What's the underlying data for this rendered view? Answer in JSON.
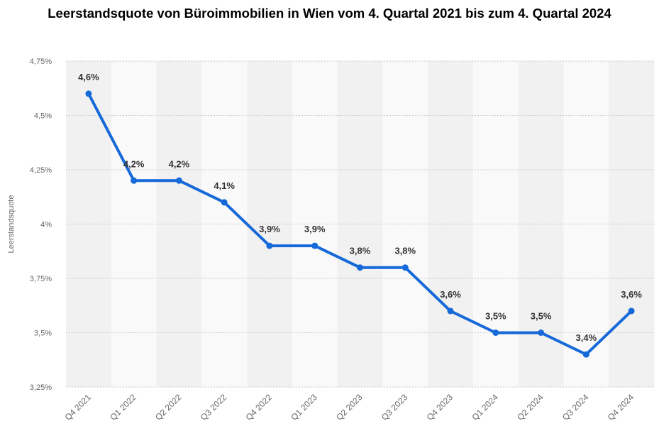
{
  "chart_data": {
    "type": "line",
    "title": "Leerstandsquote von Büroimmobilien in Wien vom 4. Quartal 2021 bis zum 4. Quartal 2024",
    "ylabel": "Leerstandsquote",
    "xlabel": "",
    "ylim": [
      3.25,
      4.75
    ],
    "y_ticks": [
      3.25,
      3.5,
      3.75,
      4,
      4.25,
      4.5,
      4.75
    ],
    "y_tick_labels": [
      "3,25%",
      "3,5%",
      "3,75%",
      "4%",
      "4,25%",
      "4,5%",
      "4,75%"
    ],
    "categories": [
      "Q4 2021",
      "Q1 2022",
      "Q2 2022",
      "Q3 2022",
      "Q4 2022",
      "Q1 2023",
      "Q2 2023",
      "Q3 2023",
      "Q4 2023",
      "Q1 2024",
      "Q2 2024",
      "Q3 2024",
      "Q4 2024"
    ],
    "values": [
      4.6,
      4.2,
      4.2,
      4.1,
      3.9,
      3.9,
      3.8,
      3.8,
      3.6,
      3.5,
      3.5,
      3.4,
      3.6
    ],
    "data_labels": [
      "4,6%",
      "4,2%",
      "4,2%",
      "4,1%",
      "3,9%",
      "3,9%",
      "3,8%",
      "3,8%",
      "3,6%",
      "3,5%",
      "3,5%",
      "3,4%",
      "3,6%"
    ],
    "grid": true,
    "legend": "none",
    "colors": {
      "line": "#1669d8",
      "band_light": "#f9f9f9",
      "band_dark": "#f1f1f1",
      "grid": "#c8c8c8"
    }
  }
}
